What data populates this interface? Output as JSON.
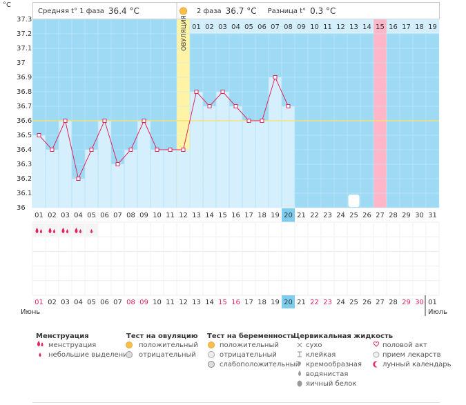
{
  "chart_data": {
    "type": "line",
    "y_unit": "°C",
    "header": {
      "phase1_label": "Средняя t° 1 фаза",
      "phase1_value": "36.4 °C",
      "phase2_label": "2 фаза",
      "phase2_value": "36.7 °C",
      "diff_label": "Разница t°",
      "diff_value": "0.3 °C"
    },
    "categories": [
      "01",
      "02",
      "03",
      "04",
      "05",
      "06",
      "07",
      "08",
      "09",
      "10",
      "11",
      "12",
      "13",
      "14",
      "15",
      "16",
      "17",
      "18",
      "19",
      "20",
      "21",
      "22",
      "23",
      "24",
      "25",
      "26",
      "27",
      "28",
      "29",
      "30",
      "31"
    ],
    "values": [
      36.5,
      36.4,
      36.6,
      36.2,
      36.4,
      36.6,
      36.3,
      36.4,
      36.6,
      36.4,
      36.4,
      36.4,
      36.8,
      36.7,
      36.8,
      36.7,
      36.6,
      36.6,
      36.9,
      36.7,
      null,
      null,
      null,
      null,
      null,
      null,
      null,
      null,
      null,
      null,
      null
    ],
    "ylim": [
      36,
      37.3
    ],
    "yticks": [
      36,
      36.1,
      36.2,
      36.3,
      36.4,
      36.5,
      36.6,
      36.7,
      36.8,
      36.9,
      37,
      37.1,
      37.2,
      37.3
    ],
    "coverline": 36.6,
    "cycle_day_labels": [
      null,
      null,
      null,
      null,
      null,
      null,
      null,
      null,
      null,
      null,
      null,
      null,
      "01",
      "02",
      "03",
      "04",
      "05",
      "06",
      "07",
      "08",
      "09",
      "10",
      "11",
      "12",
      "13",
      "14",
      "15",
      "16",
      "17",
      "18",
      "19"
    ],
    "ovulation_label": "ОВУЛЯЦИЯ",
    "ovulation_category": "12",
    "today_category": "20",
    "marked_category": "27",
    "moon_category": "25",
    "menstruation": [
      "heavy",
      "heavy",
      "heavy",
      "heavy",
      "light"
    ],
    "bottom_dates": [
      "01",
      "02",
      "03",
      "04",
      "05",
      "06",
      "07",
      "08",
      "09",
      "10",
      "11",
      "12",
      "13",
      "14",
      "15",
      "16",
      "17",
      "18",
      "19",
      "20",
      "21",
      "22",
      "23",
      "24",
      "25",
      "26",
      "27",
      "28",
      "29",
      "30",
      "01"
    ],
    "weekend": [
      true,
      false,
      false,
      false,
      false,
      false,
      false,
      true,
      true,
      false,
      false,
      false,
      false,
      false,
      true,
      true,
      false,
      false,
      false,
      false,
      false,
      true,
      true,
      false,
      false,
      false,
      false,
      false,
      true,
      true,
      false
    ],
    "month_left": "Июнь",
    "month_right": "Июль",
    "colors": {
      "plot": "#9fdaf4",
      "bar": "#d6effc",
      "line": "#e0245e",
      "ovulation": "#fff3a6",
      "marked": "#ffb6c8",
      "today": "#7ecdef",
      "coverline": "#f3e27a",
      "weekend": "#e0245e"
    },
    "legend": [
      {
        "title": "Менструация",
        "items": [
          "менструация",
          "небольшие выделения"
        ]
      },
      {
        "title": "Тест на овуляцию",
        "items": [
          "положительный",
          "отрицательный"
        ]
      },
      {
        "title": "Тест на беременность",
        "items": [
          "положительный",
          "отрицательный",
          "слабоположительный"
        ]
      },
      {
        "title": "Цервикальная жидкость",
        "items": [
          "сухо",
          "клейкая",
          "кремообразная",
          "водянистая",
          "яичный белок"
        ]
      },
      {
        "title": null,
        "items": [
          "половой акт",
          "прием лекарств",
          "лунный календарь"
        ]
      }
    ]
  }
}
